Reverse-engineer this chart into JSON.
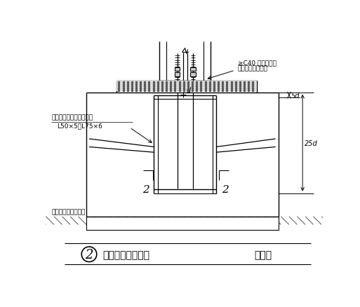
{
  "bg_color": "#ffffff",
  "lc": "#000000",
  "title_text": "柱脚锚栓固定支架",
  "title_suffix": "（二）",
  "title_num": "2",
  "ann_c40_1": "≥C40 无收缩碎石",
  "ann_c40_2": "混凝土或锚固砂浆",
  "ann_angle_1": "锚栓固定架角钢，通常用",
  "ann_angle_2": "L50×5～L75×6",
  "ann_height": "锚栓固定架设置标高",
  "dim_5d": "5d",
  "dim_25d": "25d",
  "dim_d": "d",
  "label_2": "2"
}
